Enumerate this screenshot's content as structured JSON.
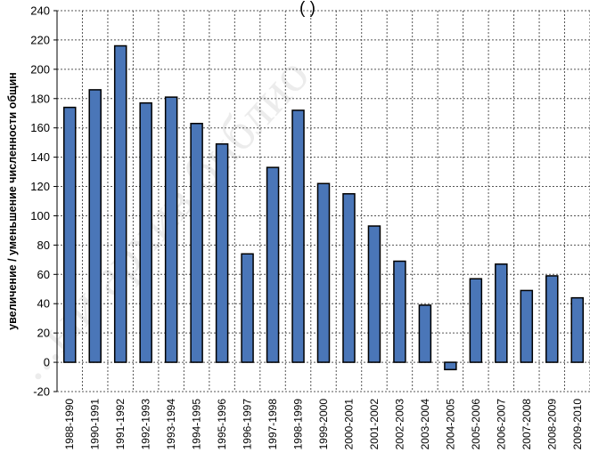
{
  "chart_data": {
    "type": "bar",
    "title": "(                                         )",
    "xlabel": "",
    "ylabel": "увеличение / уменьшение численности общин",
    "ylim": [
      -20,
      240
    ],
    "yticks": [
      -20,
      0,
      20,
      40,
      60,
      80,
      100,
      120,
      140,
      160,
      180,
      200,
      220,
      240
    ],
    "grid": true,
    "categories": [
      "1988-1990",
      "1990-1991",
      "1991-1992",
      "1992-1993",
      "1993-1994",
      "1994-1995",
      "1995-1996",
      "1996-1997",
      "1997-1998",
      "1998-1999",
      "1999-2000",
      "2000-2001",
      "2001-2002",
      "2002-2003",
      "2003-2004",
      "2004-2005",
      "2005-2006",
      "2006-2007",
      "2007-2008",
      "2008-2009",
      "2009-2010"
    ],
    "values": [
      174,
      186,
      216,
      177,
      181,
      163,
      149,
      74,
      133,
      172,
      122,
      115,
      93,
      69,
      39,
      -5,
      57,
      67,
      49,
      59,
      44
    ],
    "colors": {
      "bar": "#4a76b8",
      "grid": "#555555"
    }
  },
  "watermark": "...ый архив библио"
}
